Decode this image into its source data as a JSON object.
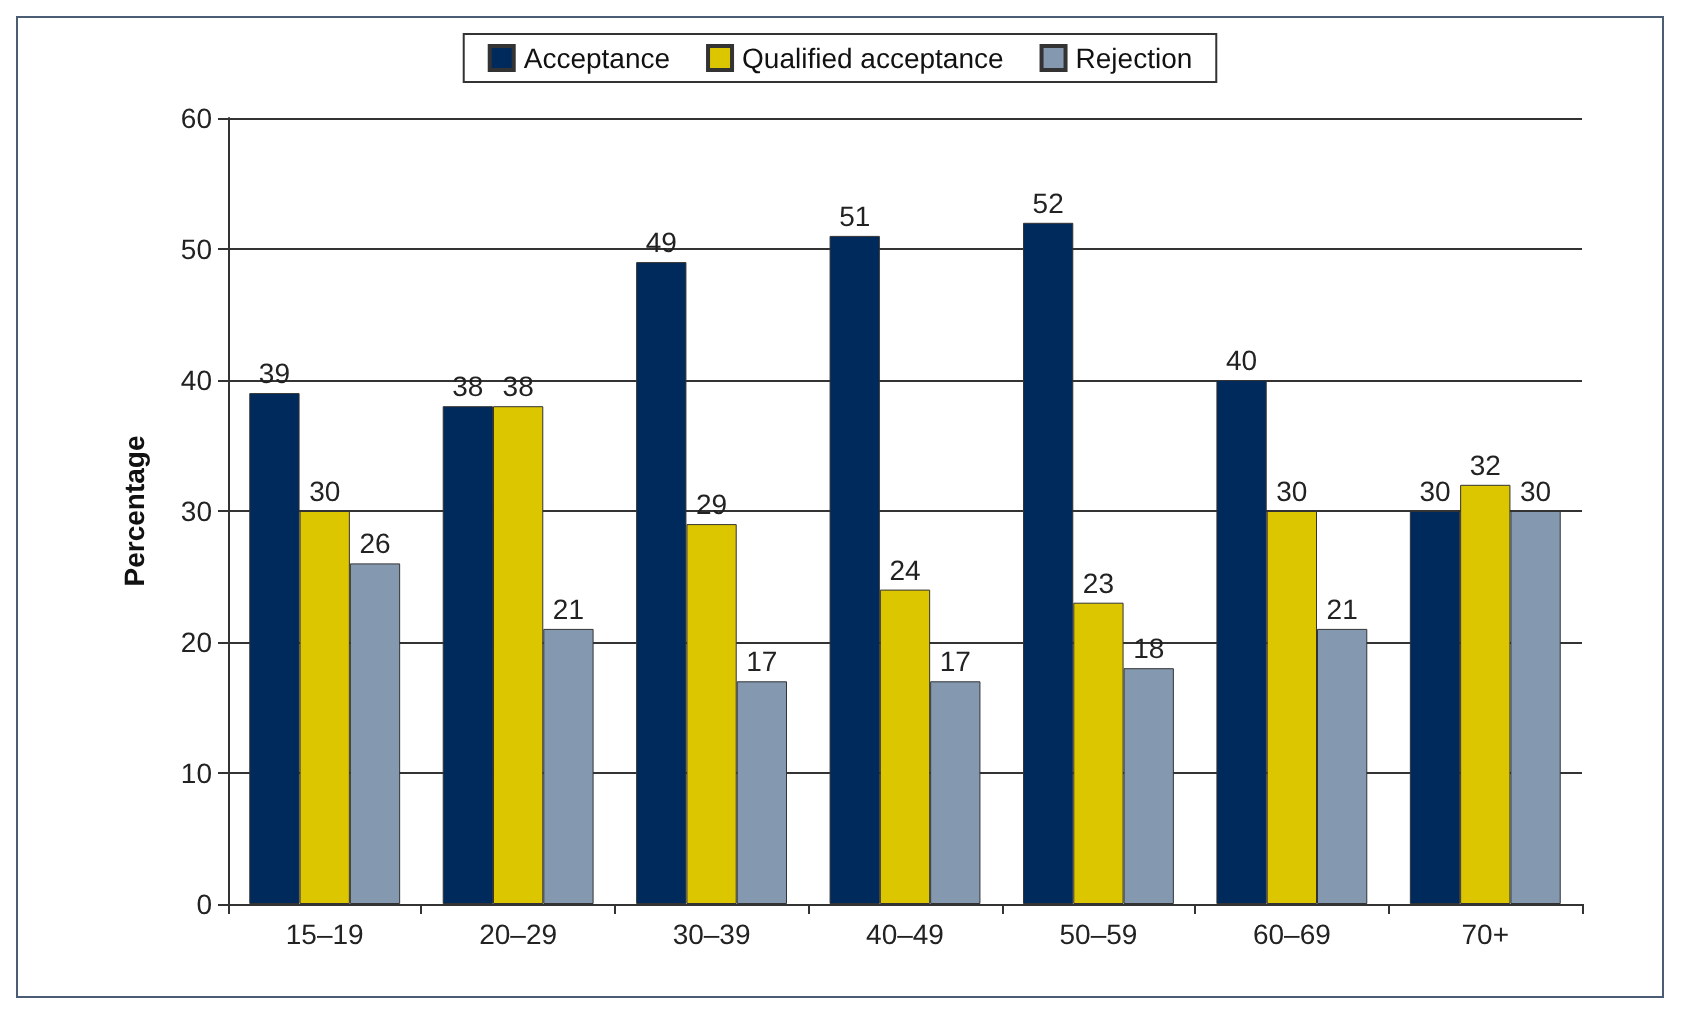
{
  "chart_data": {
    "type": "bar",
    "ylabel": "Percentage",
    "categories": [
      "15–19",
      "20–29",
      "30–39",
      "40–49",
      "50–59",
      "60–69",
      "70+"
    ],
    "series": [
      {
        "name": "Acceptance",
        "color": "#002a5c",
        "values": [
          39,
          38,
          49,
          51,
          52,
          40,
          30
        ]
      },
      {
        "name": "Qualified acceptance",
        "color": "#dcc600",
        "values": [
          30,
          38,
          29,
          24,
          23,
          30,
          32
        ]
      },
      {
        "name": "Rejection",
        "color": "#8499b0",
        "values": [
          26,
          21,
          17,
          17,
          18,
          21,
          30
        ]
      }
    ],
    "ylim": [
      0,
      60
    ],
    "yticks": [
      0,
      10,
      20,
      30,
      40,
      50,
      60
    ],
    "grid": "y",
    "legend": "top",
    "data_labels": true
  }
}
